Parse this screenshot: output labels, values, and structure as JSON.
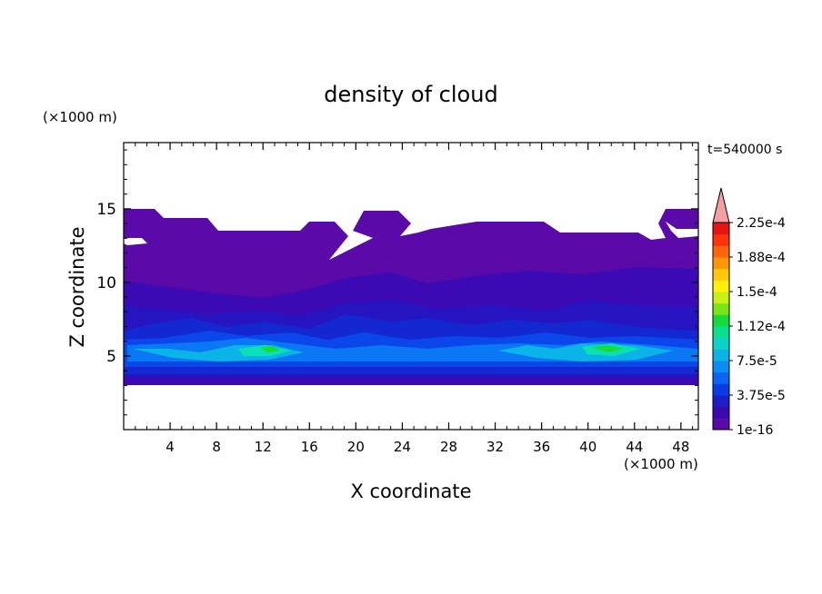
{
  "chart_data": {
    "type": "heatmap",
    "title": "density of cloud",
    "xlabel": "X coordinate",
    "ylabel": "Z coordinate",
    "x_unit": "(×1000 m)",
    "y_unit": "(×1000 m)",
    "time_label": "t=540000 s",
    "xlim": [
      0,
      49.5
    ],
    "ylim": [
      0,
      19.5
    ],
    "x_ticks": [
      4,
      8,
      12,
      16,
      20,
      24,
      28,
      32,
      36,
      40,
      44,
      48
    ],
    "y_ticks": [
      5,
      10,
      15
    ],
    "colorbar": {
      "labels": [
        "1e-16",
        "3.75e-5",
        "7.5e-5",
        "1.12e-4",
        "1.5e-4",
        "1.88e-4",
        "2.25e-4"
      ],
      "colors": [
        "#5a0aa8",
        "#3a0ab0",
        "#1e1ec8",
        "#0a3ce6",
        "#0a64f5",
        "#0a8cf5",
        "#0ab4e6",
        "#0ad2c8",
        "#0ae08c",
        "#14dc3c",
        "#78e614",
        "#c8f014",
        "#fff00a",
        "#ffc80a",
        "#ff960a",
        "#ff640a",
        "#ff320a",
        "#e61414"
      ],
      "overflow_color": "#f5a0a0"
    },
    "grid": false
  }
}
